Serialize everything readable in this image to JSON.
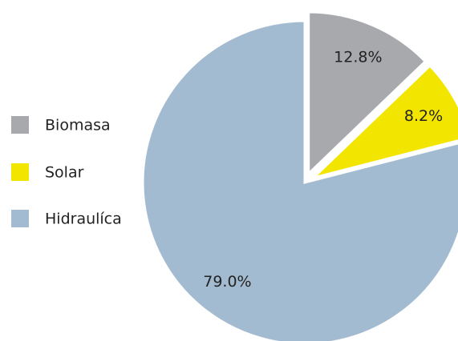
{
  "chart_data": {
    "type": "pie",
    "categories": [
      "Biomasa",
      "Solar",
      "Hidraulíca"
    ],
    "values": [
      12.8,
      8.2,
      79.0
    ],
    "value_labels": [
      "12.8%",
      "8.2%",
      "79.0%"
    ],
    "colors": [
      "#a7a9ac",
      "#f2e500",
      "#a3bbd0"
    ],
    "exploded": [
      true,
      true,
      false
    ],
    "legend": "left"
  }
}
